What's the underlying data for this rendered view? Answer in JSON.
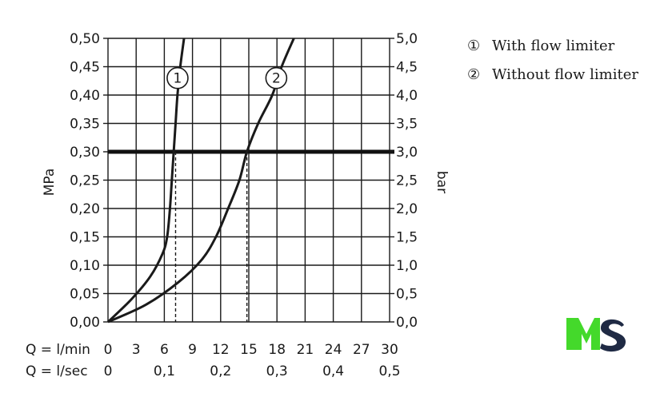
{
  "chart_data": {
    "type": "line",
    "title": "",
    "ylabel": "MPa",
    "ylabel_right": "bar",
    "x_scale_label_min": "Q = l/min",
    "x_scale_label_sec": "Q = l/sec",
    "xlim": [
      0,
      30
    ],
    "ylim": [
      0,
      0.5
    ],
    "grid": true,
    "x_ticks_min": [
      "0",
      "3",
      "6",
      "9",
      "12",
      "15",
      "18",
      "21",
      "24",
      "27",
      "30"
    ],
    "x_ticks_sec": [
      "0",
      "0,1",
      "0,2",
      "0,3",
      "0,4",
      "0,5"
    ],
    "x_ticks_sec_values": [
      0,
      6,
      12,
      18,
      24,
      30
    ],
    "y_ticks_left": [
      "0,00",
      "0,05",
      "0,10",
      "0,15",
      "0,20",
      "0,25",
      "0,30",
      "0,35",
      "0,40",
      "0,45",
      "0,50"
    ],
    "y_ticks_right": [
      "0,0",
      "0,5",
      "1,0",
      "1,5",
      "2,0",
      "2,5",
      "3,0",
      "3,5",
      "4,0",
      "4,5",
      "5,0"
    ],
    "reference_line": {
      "y": 0.3
    },
    "series": [
      {
        "marker": "1",
        "x": [
          0,
          2.5,
          4.5,
          5.8,
          6.3,
          6.6,
          6.8,
          7.0,
          7.2,
          7.4,
          7.7,
          8.1
        ],
        "y": [
          0,
          0.04,
          0.08,
          0.12,
          0.15,
          0.2,
          0.25,
          0.3,
          0.35,
          0.4,
          0.45,
          0.5
        ],
        "drop_x": 7.2
      },
      {
        "marker": "2",
        "x": [
          0,
          4,
          7.5,
          10,
          11.5,
          12.8,
          14,
          14.8,
          16,
          17.5,
          18.5,
          19.8
        ],
        "y": [
          0,
          0.03,
          0.07,
          0.11,
          0.15,
          0.2,
          0.25,
          0.3,
          0.35,
          0.4,
          0.45,
          0.5
        ],
        "drop_x": 14.8
      }
    ],
    "legend": [
      {
        "symbol": "①",
        "label": "With flow limiter"
      },
      {
        "symbol": "②",
        "label": "Without flow limiter"
      }
    ],
    "legend_placement": "top-right"
  },
  "logo": {
    "text": "MS",
    "colors": [
      "#44d92b",
      "#1f2a44"
    ]
  }
}
